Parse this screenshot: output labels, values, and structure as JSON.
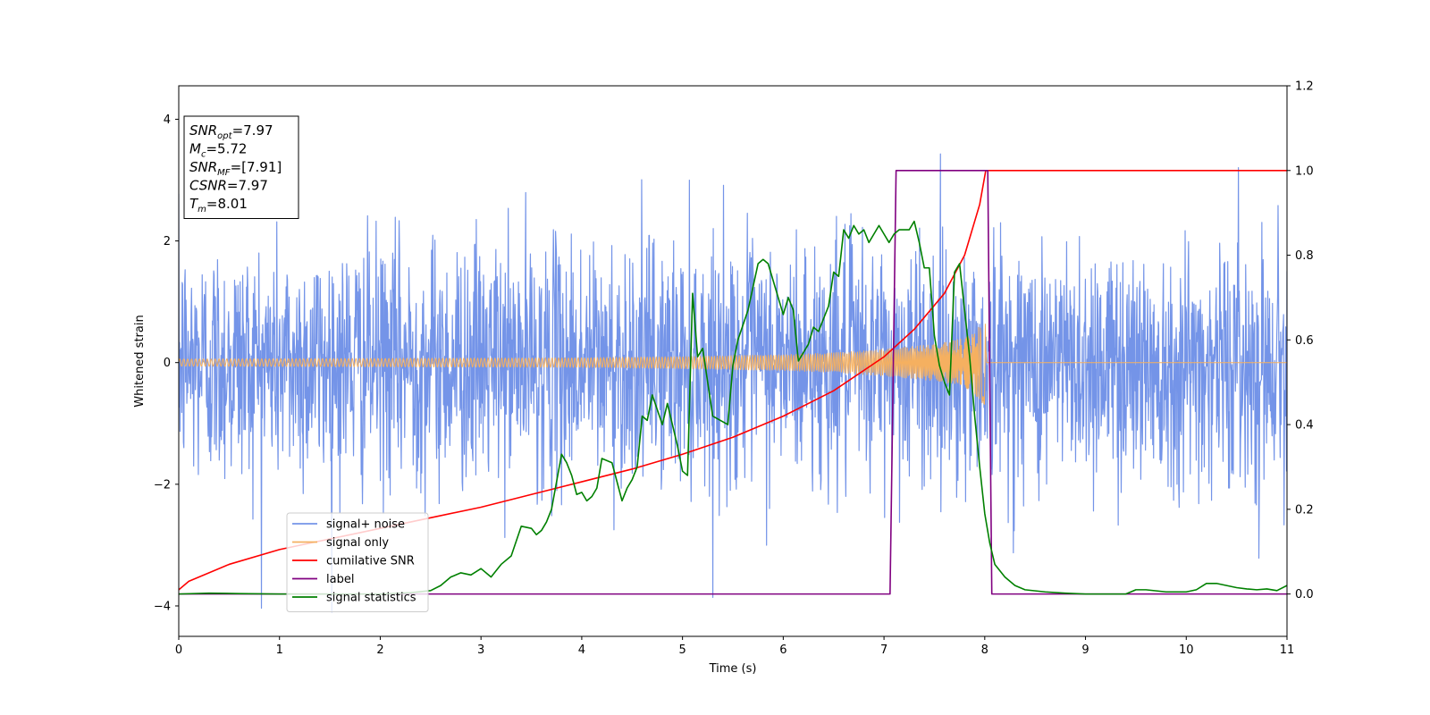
{
  "chart_data": {
    "type": "line",
    "xlabel": "Time (s)",
    "ylabel_left": "Whitened strain",
    "ylabel_right": "",
    "xlim": [
      0,
      11
    ],
    "ylim_left": [
      -4.5,
      4.55
    ],
    "ylim_right": [
      -0.1,
      1.2
    ],
    "x_ticks": [
      "0",
      "1",
      "2",
      "3",
      "4",
      "5",
      "6",
      "7",
      "8",
      "9",
      "10",
      "11"
    ],
    "y_left_ticks": [
      "-4",
      "-2",
      "0",
      "2",
      "4"
    ],
    "y_right_ticks": [
      "0.0",
      "0.2",
      "0.4",
      "0.6",
      "0.8",
      "1.0",
      "1.2"
    ],
    "grid": false,
    "legend_position": "lower-left",
    "annotation": {
      "lines": [
        {
          "main": "SNR",
          "sub": "opt",
          "rest": "=7.97"
        },
        {
          "main": "M",
          "sub": "c",
          "rest": "=5.72"
        },
        {
          "main": "SNR",
          "sub": "MF",
          "rest": "=[7.91]"
        },
        {
          "main": "CSNR",
          "sub": "",
          "rest": "=7.97"
        },
        {
          "main": "T",
          "sub": "m",
          "rest": "=8.01"
        }
      ]
    },
    "series": [
      {
        "name": "signal+ noise",
        "axis": "left",
        "color": "#7494e8",
        "kind": "noise",
        "noise_sigma": 1.0,
        "t_range": [
          0,
          11
        ]
      },
      {
        "name": "signal only",
        "axis": "left",
        "color": "#f5b060",
        "kind": "chirp_envelope",
        "t_range": [
          0,
          8.01
        ],
        "envelope": {
          "t": [
            0,
            2,
            4,
            5,
            6,
            6.5,
            7,
            7.5,
            7.8,
            7.95,
            8.01
          ],
          "amp": [
            0.06,
            0.07,
            0.08,
            0.1,
            0.13,
            0.16,
            0.22,
            0.3,
            0.4,
            0.6,
            0.75
          ]
        }
      },
      {
        "name": "cumilative SNR",
        "axis": "right",
        "color": "#ff0000",
        "x": [
          0,
          0.1,
          0.5,
          1,
          1.5,
          2,
          2.5,
          3,
          3.5,
          4,
          4.5,
          5,
          5.5,
          6,
          6.5,
          7,
          7.3,
          7.6,
          7.8,
          7.95,
          8.01,
          8.05,
          11
        ],
        "y": [
          0.01,
          0.03,
          0.07,
          0.105,
          0.13,
          0.155,
          0.18,
          0.205,
          0.235,
          0.265,
          0.295,
          0.33,
          0.37,
          0.42,
          0.48,
          0.56,
          0.625,
          0.71,
          0.8,
          0.92,
          1.0,
          1.0,
          1.0
        ]
      },
      {
        "name": "label",
        "axis": "right",
        "color": "#800080",
        "x": [
          0,
          7.06,
          7.12,
          8.03,
          8.07,
          11
        ],
        "y": [
          0,
          0,
          1,
          1,
          0,
          0
        ]
      },
      {
        "name": "signal statistics",
        "axis": "right",
        "color": "#008000",
        "x": [
          0,
          0.3,
          0.6,
          1,
          1.5,
          2,
          2.3,
          2.5,
          2.6,
          2.7,
          2.8,
          2.9,
          3.0,
          3.1,
          3.2,
          3.3,
          3.4,
          3.5,
          3.55,
          3.6,
          3.65,
          3.7,
          3.8,
          3.85,
          3.9,
          3.95,
          4.0,
          4.05,
          4.1,
          4.15,
          4.2,
          4.3,
          4.4,
          4.45,
          4.5,
          4.55,
          4.6,
          4.65,
          4.7,
          4.8,
          4.85,
          4.9,
          4.95,
          5.0,
          5.05,
          5.1,
          5.15,
          5.2,
          5.3,
          5.45,
          5.5,
          5.55,
          5.65,
          5.75,
          5.8,
          5.85,
          5.9,
          5.95,
          6.0,
          6.05,
          6.1,
          6.15,
          6.2,
          6.25,
          6.3,
          6.35,
          6.4,
          6.45,
          6.5,
          6.55,
          6.6,
          6.65,
          6.7,
          6.75,
          6.8,
          6.85,
          6.9,
          6.95,
          7.0,
          7.05,
          7.1,
          7.15,
          7.2,
          7.25,
          7.3,
          7.35,
          7.4,
          7.45,
          7.5,
          7.55,
          7.6,
          7.65,
          7.7,
          7.75,
          7.8,
          7.85,
          7.9,
          7.95,
          8.0,
          8.05,
          8.1,
          8.2,
          8.3,
          8.4,
          8.6,
          8.8,
          9.0,
          9.2,
          9.3,
          9.4,
          9.5,
          9.6,
          9.8,
          10.0,
          10.1,
          10.2,
          10.3,
          10.4,
          10.5,
          10.6,
          10.7,
          10.8,
          10.9,
          11.0
        ],
        "y": [
          0.0,
          0.002,
          0.001,
          0.0,
          0.0,
          0.0,
          0.003,
          0.008,
          0.02,
          0.04,
          0.05,
          0.045,
          0.06,
          0.04,
          0.07,
          0.09,
          0.16,
          0.155,
          0.14,
          0.15,
          0.17,
          0.2,
          0.33,
          0.31,
          0.28,
          0.235,
          0.24,
          0.22,
          0.23,
          0.25,
          0.32,
          0.31,
          0.22,
          0.25,
          0.27,
          0.3,
          0.42,
          0.41,
          0.47,
          0.4,
          0.45,
          0.4,
          0.35,
          0.29,
          0.28,
          0.71,
          0.56,
          0.58,
          0.42,
          0.4,
          0.54,
          0.6,
          0.67,
          0.78,
          0.79,
          0.78,
          0.74,
          0.7,
          0.66,
          0.7,
          0.67,
          0.55,
          0.57,
          0.59,
          0.63,
          0.62,
          0.65,
          0.68,
          0.76,
          0.75,
          0.86,
          0.84,
          0.87,
          0.85,
          0.86,
          0.83,
          0.85,
          0.87,
          0.85,
          0.83,
          0.85,
          0.86,
          0.86,
          0.86,
          0.88,
          0.83,
          0.77,
          0.77,
          0.61,
          0.54,
          0.5,
          0.47,
          0.76,
          0.78,
          0.67,
          0.56,
          0.42,
          0.3,
          0.19,
          0.12,
          0.07,
          0.04,
          0.02,
          0.01,
          0.005,
          0.002,
          0.0,
          0.0,
          0.0,
          0.0,
          0.01,
          0.01,
          0.005,
          0.005,
          0.01,
          0.025,
          0.025,
          0.02,
          0.015,
          0.012,
          0.01,
          0.012,
          0.008,
          0.02
        ]
      }
    ]
  }
}
